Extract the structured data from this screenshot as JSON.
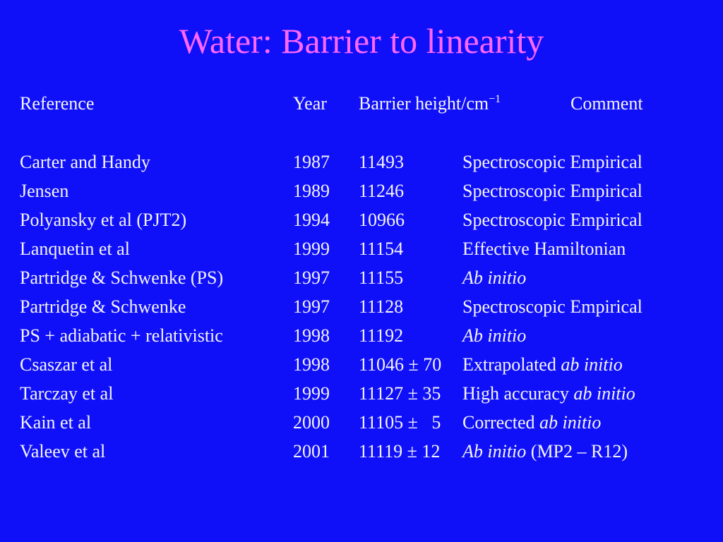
{
  "title": "Water: Barrier to linearity",
  "table": {
    "header": {
      "reference": "Reference",
      "year": "Year",
      "barrier": "Barrier height/cm",
      "barrier_exponent": "−1",
      "comment": "Comment"
    },
    "rows": [
      {
        "reference": "Carter and Handy",
        "year": 1987,
        "barrier": "11493",
        "comment": [
          {
            "text": "Spectroscopic Empirical",
            "italic": false
          }
        ]
      },
      {
        "reference": "Jensen",
        "year": 1989,
        "barrier": "11246",
        "comment": [
          {
            "text": "Spectroscopic Empirical",
            "italic": false
          }
        ]
      },
      {
        "reference": "Polyansky et al (PJT2)",
        "year": 1994,
        "barrier": "10966",
        "comment": [
          {
            "text": "Spectroscopic Empirical",
            "italic": false
          }
        ]
      },
      {
        "reference": "Lanquetin et al",
        "year": 1999,
        "barrier": "11154",
        "comment": [
          {
            "text": "Effective Hamiltonian",
            "italic": false
          }
        ]
      },
      {
        "reference": "Partridge & Schwenke (PS)",
        "year": 1997,
        "barrier": "11155",
        "comment": [
          {
            "text": "Ab initio",
            "italic": true
          }
        ]
      },
      {
        "reference": "Partridge & Schwenke",
        "year": 1997,
        "barrier": "11128",
        "comment": [
          {
            "text": "Spectroscopic Empirical",
            "italic": false
          }
        ]
      },
      {
        "reference": "PS + adiabatic + relativistic",
        "year": 1998,
        "barrier": "11192",
        "comment": [
          {
            "text": "Ab initio",
            "italic": true
          }
        ]
      },
      {
        "reference": "Csaszar et al",
        "year": 1998,
        "barrier": "11046 ± 70",
        "comment": [
          {
            "text": "Extrapolated",
            "italic": false
          },
          {
            "text": "ab initio",
            "italic": true
          }
        ]
      },
      {
        "reference": "Tarczay et al",
        "year": 1999,
        "barrier": "11127 ± 35",
        "comment": [
          {
            "text": "High accuracy",
            "italic": false
          },
          {
            "text": "ab initio",
            "italic": true
          }
        ]
      },
      {
        "reference": "Kain et al",
        "year": 2000,
        "barrier": "11105 ±   5",
        "comment": [
          {
            "text": "Corrected",
            "italic": false
          },
          {
            "text": "ab initio",
            "italic": true
          }
        ]
      },
      {
        "reference": "Valeev et al",
        "year": 2001,
        "barrier": "11119 ± 12",
        "comment": [
          {
            "text": "Ab initio",
            "italic": true
          },
          {
            "text": "(MP2 – R12)",
            "italic": false
          }
        ]
      }
    ]
  }
}
